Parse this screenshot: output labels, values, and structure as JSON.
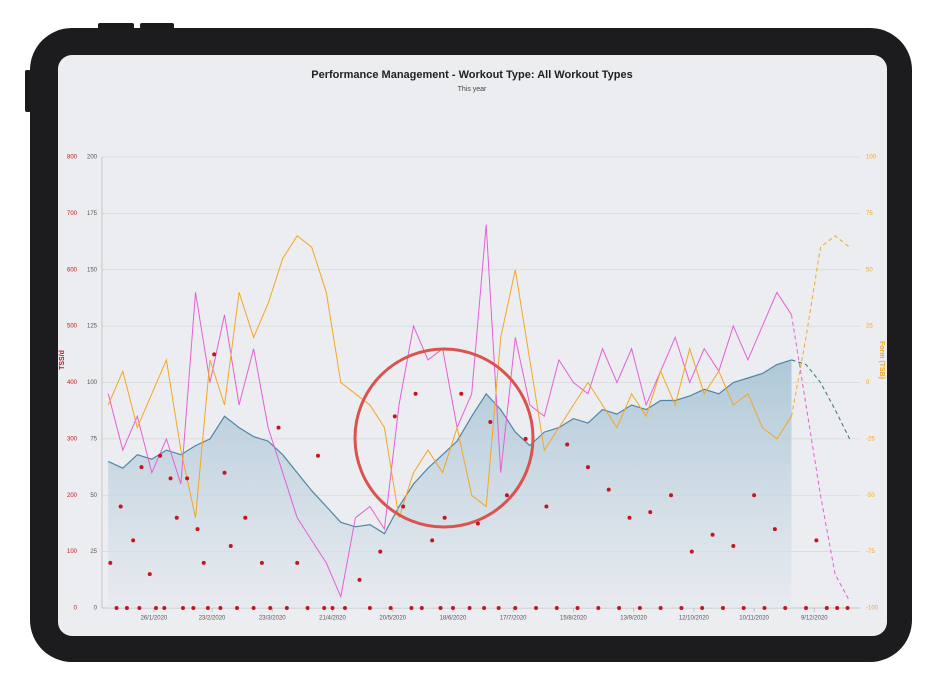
{
  "chart_data": {
    "type": "performance",
    "title": "Performance Management - Workout Type: All Workout Types",
    "subtitle": "This year",
    "y3_label": "TSS/d",
    "y2_label": "Form (TSB)",
    "xlim": [
      1,
      366
    ],
    "xticks": [
      {
        "value": 26,
        "label": "26/1/2020"
      },
      {
        "value": 54,
        "label": "23/2/2020"
      },
      {
        "value": 83,
        "label": "23/3/2020"
      },
      {
        "value": 112,
        "label": "21/4/2020"
      },
      {
        "value": 141,
        "label": "20/5/2020"
      },
      {
        "value": 170,
        "label": "18/6/2020"
      },
      {
        "value": 199,
        "label": "17/7/2020"
      },
      {
        "value": 228,
        "label": "15/8/2020"
      },
      {
        "value": 257,
        "label": "13/9/2020"
      },
      {
        "value": 286,
        "label": "12/10/2020"
      },
      {
        "value": 315,
        "label": "10/11/2020"
      },
      {
        "value": 344,
        "label": "9/12/2020"
      }
    ],
    "ylim": [
      0,
      200
    ],
    "yticks": [
      0,
      25,
      50,
      75,
      100,
      125,
      150,
      175,
      200
    ],
    "y2lim": [
      -100,
      100
    ],
    "y2ticks": [
      -100,
      -75,
      -50,
      -25,
      0,
      25,
      50,
      75,
      100
    ],
    "y3lim": [
      0,
      800
    ],
    "y3ticks": [
      0,
      100,
      200,
      300,
      400,
      500,
      600,
      700,
      800
    ],
    "grid": true,
    "series": [
      {
        "kind": "area",
        "color": "#4f86a6",
        "axis": "y",
        "x": [
          4,
          11,
          18,
          25,
          32,
          39,
          46,
          53,
          60,
          67,
          74,
          81,
          88,
          95,
          102,
          109,
          116,
          123,
          130,
          137,
          144,
          151,
          158,
          165,
          172,
          179,
          186,
          193,
          200,
          207,
          214,
          221,
          228,
          235,
          242,
          249,
          256,
          263,
          270,
          277,
          284,
          291,
          298,
          305,
          312,
          319,
          326,
          333
        ],
        "values": [
          65,
          62,
          68,
          66,
          70,
          68,
          72,
          75,
          85,
          80,
          76,
          74,
          68,
          60,
          52,
          45,
          38,
          36,
          37,
          33,
          45,
          55,
          62,
          68,
          74,
          85,
          95,
          88,
          78,
          72,
          78,
          80,
          84,
          82,
          88,
          86,
          90,
          88,
          92,
          92,
          94,
          97,
          95,
          100,
          102,
          104,
          108,
          110
        ]
      },
      {
        "kind": "line",
        "color": "#e55fd6",
        "axis": "y",
        "x": [
          4,
          11,
          18,
          25,
          32,
          39,
          46,
          53,
          60,
          67,
          74,
          81,
          88,
          95,
          102,
          109,
          116,
          123,
          130,
          137,
          144,
          151,
          158,
          165,
          172,
          179,
          186,
          193,
          200,
          207,
          214,
          221,
          228,
          235,
          242,
          249,
          256,
          263,
          270,
          277,
          284,
          291,
          298,
          305,
          312,
          319,
          326,
          333
        ],
        "values": [
          95,
          70,
          85,
          60,
          75,
          55,
          140,
          100,
          130,
          90,
          115,
          80,
          60,
          40,
          30,
          20,
          5,
          40,
          45,
          35,
          90,
          125,
          110,
          115,
          80,
          95,
          170,
          60,
          120,
          90,
          85,
          110,
          100,
          95,
          115,
          100,
          115,
          90,
          105,
          120,
          100,
          115,
          105,
          125,
          110,
          125,
          140,
          130
        ]
      },
      {
        "kind": "line",
        "color": "#f5a623",
        "axis": "y2",
        "x": [
          4,
          11,
          18,
          25,
          32,
          39,
          46,
          53,
          60,
          67,
          74,
          81,
          88,
          95,
          102,
          109,
          116,
          123,
          130,
          137,
          144,
          151,
          158,
          165,
          172,
          179,
          186,
          193,
          200,
          207,
          214,
          221,
          228,
          235,
          242,
          249,
          256,
          263,
          270,
          277,
          284,
          291,
          298,
          305,
          312,
          319,
          326,
          333
        ],
        "values": [
          -10,
          5,
          -20,
          -5,
          10,
          -30,
          -60,
          10,
          -10,
          40,
          20,
          35,
          55,
          65,
          60,
          40,
          0,
          -5,
          -10,
          -20,
          -60,
          -40,
          -30,
          -40,
          -20,
          -50,
          -55,
          20,
          50,
          10,
          -30,
          -20,
          -10,
          0,
          -10,
          -20,
          -5,
          -15,
          5,
          -10,
          15,
          -5,
          5,
          -10,
          -5,
          -20,
          -25,
          -15
        ]
      },
      {
        "kind": "line",
        "dashed": true,
        "color": "#2f7a73",
        "axis": "y",
        "x": [
          333,
          340,
          347,
          354,
          361
        ],
        "values": [
          110,
          108,
          100,
          88,
          75
        ]
      },
      {
        "kind": "line",
        "dashed": true,
        "color": "#e55fd6",
        "axis": "y",
        "x": [
          333,
          340,
          347,
          354,
          361
        ],
        "values": [
          130,
          90,
          50,
          15,
          3
        ]
      },
      {
        "kind": "line",
        "dashed": true,
        "color": "#f5a623",
        "axis": "y2",
        "x": [
          333,
          340,
          347,
          354,
          361
        ],
        "values": [
          -15,
          20,
          60,
          65,
          60
        ]
      },
      {
        "kind": "dots",
        "color": "#c4161c",
        "axis": "y3",
        "x": [
          5,
          8,
          10,
          13,
          16,
          19,
          20,
          24,
          27,
          29,
          31,
          34,
          37,
          40,
          42,
          45,
          47,
          50,
          52,
          55,
          58,
          60,
          63,
          66,
          70,
          74,
          78,
          82,
          86,
          90,
          95,
          100,
          105,
          108,
          112,
          118,
          125,
          130,
          135,
          140,
          142,
          146,
          150,
          152,
          155,
          160,
          164,
          166,
          170,
          174,
          178,
          182,
          185,
          188,
          192,
          196,
          200,
          205,
          210,
          215,
          220,
          225,
          230,
          235,
          240,
          245,
          250,
          255,
          260,
          265,
          270,
          275,
          280,
          285,
          290,
          295,
          300,
          305,
          310,
          315,
          320,
          325,
          330,
          340,
          345,
          350,
          355,
          360
        ],
        "values": [
          80,
          0,
          180,
          0,
          120,
          0,
          250,
          60,
          0,
          270,
          0,
          230,
          160,
          0,
          230,
          0,
          140,
          80,
          0,
          450,
          0,
          240,
          110,
          0,
          160,
          0,
          80,
          0,
          320,
          0,
          80,
          0,
          270,
          0,
          0,
          0,
          50,
          0,
          100,
          0,
          340,
          180,
          0,
          380,
          0,
          120,
          0,
          160,
          0,
          380,
          0,
          150,
          0,
          330,
          0,
          200,
          0,
          300,
          0,
          180,
          0,
          290,
          0,
          250,
          0,
          210,
          0,
          160,
          0,
          170,
          0,
          200,
          0,
          100,
          0,
          130,
          0,
          110,
          0,
          200,
          0,
          140,
          0,
          0,
          120,
          0,
          0,
          0
        ]
      }
    ]
  }
}
